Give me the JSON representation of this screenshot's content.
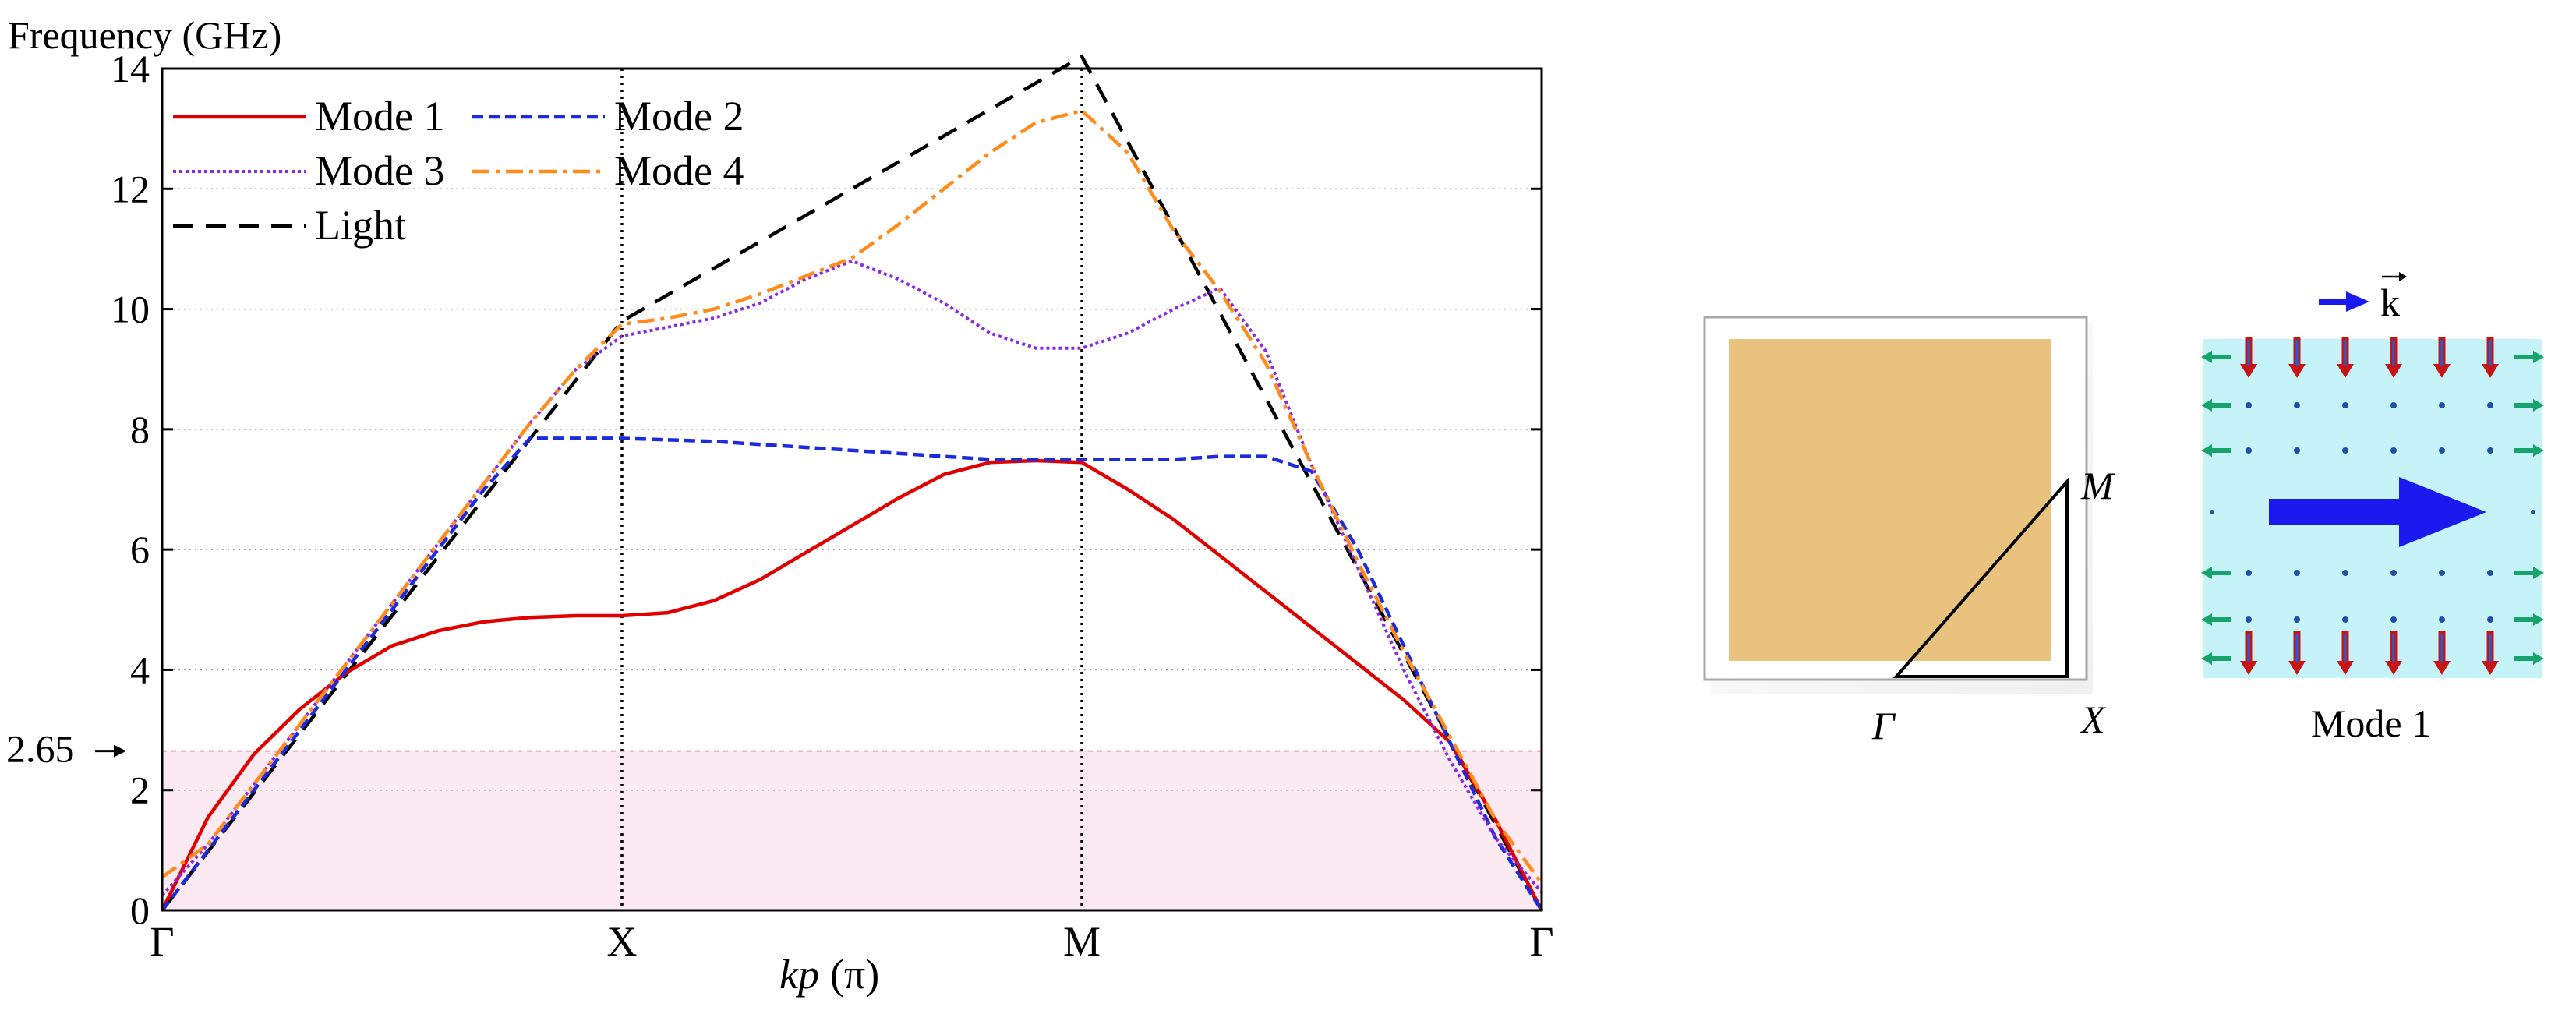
{
  "chart_data": {
    "type": "line",
    "title": "",
    "ylabel": "Frequency (GHz)",
    "xlabel_italic": "kp",
    "xlabel_unit": "(π)",
    "ylim": [
      0,
      14
    ],
    "yticks": [
      0,
      2,
      4,
      6,
      8,
      10,
      12,
      14
    ],
    "xpath": [
      0,
      1,
      2,
      3
    ],
    "xticklabels": [
      "Γ",
      "X",
      "M",
      "Γ"
    ],
    "band_annotation": {
      "value": 2.65,
      "label": "2.65"
    },
    "grid": true,
    "legend_position": "top-left",
    "series": [
      {
        "name": "Mode 1",
        "color": "#e00000",
        "dash": "solid",
        "x": [
          0,
          0.1,
          0.2,
          0.3,
          0.4,
          0.5,
          0.6,
          0.7,
          0.8,
          0.9,
          1.0,
          1.1,
          1.2,
          1.3,
          1.4,
          1.5,
          1.6,
          1.7,
          1.8,
          1.9,
          2.0,
          2.1,
          2.2,
          2.3,
          2.4,
          2.5,
          2.6,
          2.7,
          2.8,
          2.9,
          3.0
        ],
        "y": [
          0,
          1.55,
          2.6,
          3.35,
          3.95,
          4.4,
          4.65,
          4.8,
          4.87,
          4.9,
          4.9,
          4.95,
          5.15,
          5.5,
          5.95,
          6.4,
          6.85,
          7.25,
          7.45,
          7.48,
          7.45,
          7.0,
          6.5,
          5.9,
          5.3,
          4.7,
          4.1,
          3.5,
          2.8,
          1.5,
          0
        ]
      },
      {
        "name": "Mode 2",
        "color": "#1c2bdc",
        "dash": "dashed",
        "x": [
          0,
          0.1,
          0.2,
          0.3,
          0.4,
          0.5,
          0.6,
          0.7,
          0.8,
          0.9,
          1.0,
          1.2,
          1.4,
          1.6,
          1.8,
          2.0,
          2.2,
          2.3,
          2.4,
          2.5,
          2.6,
          2.7,
          2.8,
          2.9,
          3.0
        ],
        "y": [
          0,
          1.0,
          2.0,
          3.0,
          4.0,
          5.0,
          6.0,
          7.0,
          7.85,
          7.85,
          7.85,
          7.8,
          7.7,
          7.6,
          7.5,
          7.5,
          7.5,
          7.55,
          7.55,
          7.3,
          6.0,
          4.4,
          2.8,
          1.2,
          0
        ]
      },
      {
        "name": "Mode 3",
        "color": "#8a2be2",
        "dash": "dotted",
        "x": [
          0,
          0.1,
          0.2,
          0.3,
          0.4,
          0.5,
          0.6,
          0.7,
          0.8,
          0.9,
          1.0,
          1.1,
          1.2,
          1.3,
          1.4,
          1.5,
          1.6,
          1.7,
          1.8,
          1.9,
          2.0,
          2.1,
          2.2,
          2.3,
          2.4,
          2.5,
          2.6,
          2.7,
          2.8,
          2.9,
          3.0
        ],
        "y": [
          0.25,
          1.1,
          2.1,
          3.1,
          4.1,
          5.1,
          6.1,
          7.1,
          8.1,
          9.0,
          9.55,
          9.7,
          9.85,
          10.1,
          10.5,
          10.8,
          10.5,
          10.1,
          9.6,
          9.35,
          9.35,
          9.6,
          10.0,
          10.35,
          9.3,
          7.4,
          5.7,
          4.0,
          2.5,
          1.2,
          0.3
        ]
      },
      {
        "name": "Mode 4",
        "color": "#ff8c1a",
        "dash": "dashdot",
        "x": [
          0,
          0.1,
          0.2,
          0.3,
          0.4,
          0.5,
          0.6,
          0.7,
          0.8,
          0.9,
          1.0,
          1.1,
          1.2,
          1.3,
          1.4,
          1.5,
          1.6,
          1.7,
          1.8,
          1.9,
          2.0,
          2.1,
          2.2,
          2.3,
          2.4,
          2.5,
          2.6,
          2.7,
          2.8,
          2.9,
          3.0
        ],
        "y": [
          0.55,
          1.1,
          2.1,
          3.1,
          4.1,
          5.1,
          6.1,
          7.1,
          8.1,
          9.0,
          9.75,
          9.85,
          10.0,
          10.25,
          10.55,
          10.85,
          11.4,
          12.0,
          12.6,
          13.1,
          13.3,
          12.6,
          11.3,
          10.3,
          9.1,
          7.4,
          5.8,
          4.3,
          2.9,
          1.5,
          0.45
        ]
      },
      {
        "name": "Light",
        "color": "#000000",
        "dash": "longdash",
        "x": [
          0,
          1.0,
          2.0,
          3.0
        ],
        "y": [
          0,
          9.8,
          14.2,
          0
        ]
      }
    ]
  },
  "brillouin_zone": {
    "labels": {
      "gamma": "Γ",
      "x": "X",
      "m": "M"
    },
    "fill_color": "#e9c37e"
  },
  "mode_panel": {
    "wavevector_label": "k",
    "caption": "Mode 1",
    "background_color": "#c6f3f7",
    "arrow_color": "#1a1aee"
  }
}
